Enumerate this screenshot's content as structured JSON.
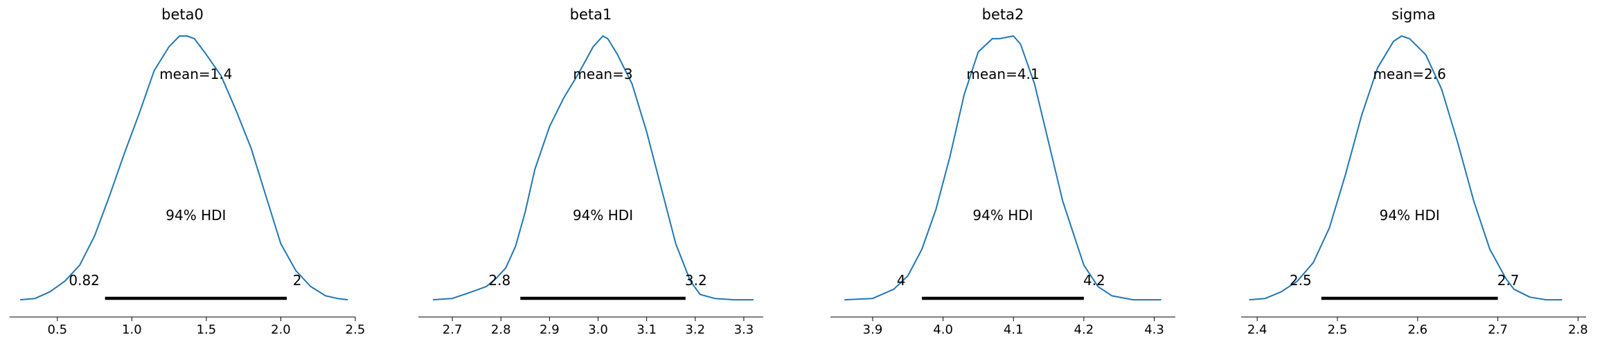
{
  "chart_data": [
    {
      "type": "line",
      "title": "beta0",
      "mean_label": "mean=1.4",
      "hdi_label": "94% HDI",
      "hdi_low_label": "0.82",
      "hdi_high_label": "2",
      "hdi": [
        0.82,
        2.04
      ],
      "xlim": [
        0.18,
        2.5
      ],
      "xticks": [
        0.5,
        1.0,
        1.5,
        2.0,
        2.5
      ],
      "xtick_labels": [
        "0.5",
        "1.0",
        "1.5",
        "2.0",
        "2.5"
      ],
      "density": {
        "x": [
          0.25,
          0.35,
          0.45,
          0.55,
          0.65,
          0.75,
          0.85,
          0.95,
          1.05,
          1.15,
          1.25,
          1.32,
          1.37,
          1.42,
          1.5,
          1.6,
          1.7,
          1.8,
          1.9,
          2.0,
          2.1,
          2.2,
          2.3,
          2.38,
          2.45
        ],
        "y": [
          0.01,
          0.015,
          0.04,
          0.08,
          0.14,
          0.25,
          0.4,
          0.56,
          0.71,
          0.87,
          0.96,
          1.0,
          1.0,
          0.99,
          0.93,
          0.85,
          0.72,
          0.58,
          0.4,
          0.22,
          0.12,
          0.06,
          0.025,
          0.015,
          0.01
        ]
      }
    },
    {
      "type": "line",
      "title": "beta1",
      "mean_label": "mean=3",
      "hdi_label": "94% HDI",
      "hdi_low_label": "2.8",
      "hdi_high_label": "3.2",
      "hdi": [
        2.84,
        3.18
      ],
      "xlim": [
        2.63,
        3.34
      ],
      "xticks": [
        2.7,
        2.8,
        2.9,
        3.0,
        3.1,
        3.2,
        3.3
      ],
      "xtick_labels": [
        "2.7",
        "2.8",
        "2.9",
        "3.0",
        "3.1",
        "3.2",
        "3.3"
      ],
      "density": {
        "x": [
          2.66,
          2.7,
          2.74,
          2.77,
          2.79,
          2.81,
          2.83,
          2.85,
          2.87,
          2.9,
          2.93,
          2.96,
          2.99,
          3.01,
          3.02,
          3.04,
          3.07,
          3.1,
          3.13,
          3.16,
          3.19,
          3.21,
          3.24,
          3.28,
          3.32
        ],
        "y": [
          0.01,
          0.015,
          0.04,
          0.06,
          0.09,
          0.13,
          0.21,
          0.34,
          0.5,
          0.66,
          0.77,
          0.86,
          0.96,
          1.0,
          0.99,
          0.93,
          0.82,
          0.64,
          0.43,
          0.22,
          0.08,
          0.03,
          0.015,
          0.01,
          0.01
        ]
      }
    },
    {
      "type": "line",
      "title": "beta2",
      "mean_label": "mean=4.1",
      "hdi_label": "94% HDI",
      "hdi_low_label": "4",
      "hdi_high_label": "4.2",
      "hdi": [
        3.97,
        4.2
      ],
      "xlim": [
        3.84,
        4.33
      ],
      "xticks": [
        3.9,
        4.0,
        4.1,
        4.2,
        4.3
      ],
      "xtick_labels": [
        "3.9",
        "4.0",
        "4.1",
        "4.2",
        "4.3"
      ],
      "density": {
        "x": [
          3.86,
          3.9,
          3.93,
          3.95,
          3.97,
          3.99,
          4.01,
          4.03,
          4.05,
          4.07,
          4.08,
          4.1,
          4.11,
          4.13,
          4.15,
          4.17,
          4.19,
          4.2,
          4.22,
          4.24,
          4.27,
          4.31
        ],
        "y": [
          0.01,
          0.015,
          0.05,
          0.1,
          0.2,
          0.35,
          0.55,
          0.78,
          0.94,
          0.99,
          0.99,
          1.0,
          0.97,
          0.82,
          0.6,
          0.38,
          0.22,
          0.14,
          0.06,
          0.025,
          0.01,
          0.01
        ]
      }
    },
    {
      "type": "line",
      "title": "sigma",
      "mean_label": "mean=2.6",
      "hdi_label": "94% HDI",
      "hdi_low_label": "2.5",
      "hdi_high_label": "2.7",
      "hdi": [
        2.48,
        2.7
      ],
      "xlim": [
        2.38,
        2.81
      ],
      "xticks": [
        2.4,
        2.5,
        2.6,
        2.7,
        2.8
      ],
      "xtick_labels": [
        "2.4",
        "2.5",
        "2.6",
        "2.7",
        "2.8"
      ],
      "density": {
        "x": [
          2.39,
          2.41,
          2.43,
          2.45,
          2.47,
          2.49,
          2.51,
          2.53,
          2.55,
          2.57,
          2.58,
          2.59,
          2.61,
          2.63,
          2.65,
          2.67,
          2.69,
          2.71,
          2.72,
          2.74,
          2.76,
          2.78
        ],
        "y": [
          0.01,
          0.015,
          0.04,
          0.08,
          0.15,
          0.28,
          0.48,
          0.7,
          0.88,
          0.98,
          1.0,
          0.99,
          0.93,
          0.8,
          0.6,
          0.38,
          0.2,
          0.09,
          0.05,
          0.02,
          0.01,
          0.01
        ]
      }
    }
  ],
  "colors": {
    "density_line": "#1f77b4",
    "hdi_bar": "#000000",
    "axis": "#000000",
    "background": "#ffffff"
  }
}
